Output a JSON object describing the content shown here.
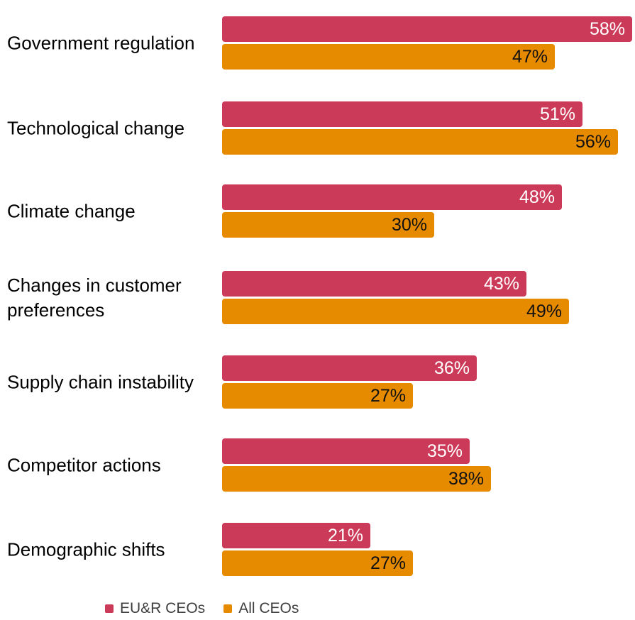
{
  "chart_data": {
    "type": "bar",
    "orientation": "horizontal",
    "title": "",
    "xlabel": "",
    "ylabel": "",
    "categories": [
      "Government regulation",
      "Technological change",
      "Climate change",
      "Changes in customer preferences",
      "Supply chain instability",
      "Competitor actions",
      "Demographic shifts"
    ],
    "series": [
      {
        "name": "EU&R CEOs",
        "color": "#CB3A58",
        "values": [
          58,
          51,
          48,
          43,
          36,
          35,
          21
        ]
      },
      {
        "name": "All CEOs",
        "color": "#E68A00",
        "values": [
          47,
          56,
          30,
          49,
          27,
          38,
          27
        ]
      }
    ],
    "value_suffix": "%",
    "value_labels_shown": true,
    "xlim": [
      0,
      58
    ],
    "grid": false,
    "legend_position": "bottom"
  }
}
